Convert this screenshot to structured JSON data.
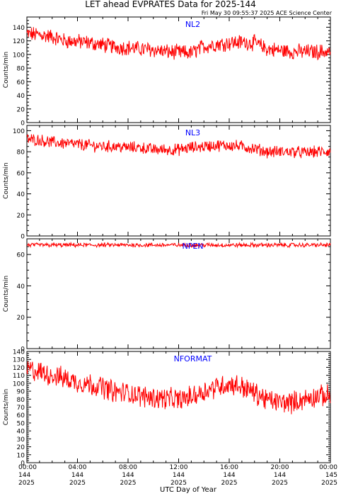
{
  "title": "LET ahead EVPRATES Data for 2025-144",
  "timestamp": "Fri May 30 09:55:37 2025 ACE Science Center",
  "xlabel": "UTC Day of Year",
  "colors": {
    "series": "#ff0000",
    "panel_label": "#0000ff",
    "axis": "#000000"
  },
  "chart_data": [
    {
      "type": "line",
      "label": "NL2",
      "ylabel": "Counts/min",
      "ylim": [
        0,
        155
      ],
      "yticks": [
        0,
        20,
        40,
        60,
        80,
        100,
        120,
        140
      ],
      "xlim": [
        0,
        24
      ],
      "series": [
        {
          "values_hourly": [
            130,
            129,
            126,
            120,
            119,
            117,
            114,
            111,
            110,
            108,
            107,
            104,
            103,
            102,
            112,
            115,
            117,
            118,
            117,
            108,
            106,
            104,
            104,
            104
          ]
        }
      ],
      "noise": 10
    },
    {
      "type": "line",
      "label": "NL3",
      "ylabel": "Counts/min",
      "ylim": [
        0,
        105
      ],
      "yticks": [
        0,
        20,
        40,
        60,
        80,
        100
      ],
      "xlim": [
        0,
        24
      ],
      "series": [
        {
          "values_hourly": [
            92,
            91,
            89,
            88,
            87,
            86,
            85,
            85,
            84,
            84,
            82,
            82,
            82,
            84,
            85,
            86,
            86,
            85,
            83,
            80,
            80,
            80,
            79,
            80
          ]
        }
      ],
      "noise": 5
    },
    {
      "type": "line",
      "label": "NPEN",
      "ylabel": "Counts/min",
      "ylim": [
        0,
        70
      ],
      "yticks": [
        0,
        20,
        40,
        60
      ],
      "xlim": [
        0,
        24
      ],
      "series": [
        {
          "values_hourly": [
            66,
            66,
            66,
            66,
            66,
            66,
            66,
            66,
            66,
            66,
            66,
            66,
            66,
            66,
            66,
            66,
            66,
            66,
            66,
            66,
            66,
            66,
            66,
            66
          ]
        }
      ],
      "noise": 1.2
    },
    {
      "type": "line",
      "label": "NFORMAT",
      "ylabel": "Counts/min",
      "ylim": [
        0,
        140
      ],
      "yticks": [
        0,
        10,
        20,
        30,
        40,
        50,
        60,
        70,
        80,
        90,
        100,
        110,
        120,
        130,
        140
      ],
      "xlim": [
        0,
        24
      ],
      "series": [
        {
          "values_hourly": [
            118,
            114,
            110,
            106,
            101,
            99,
            95,
            89,
            88,
            84,
            82,
            81,
            79,
            83,
            90,
            96,
            99,
            96,
            88,
            79,
            76,
            76,
            80,
            84
          ]
        }
      ],
      "noise": 12
    }
  ],
  "xticks": [
    {
      "hour": 0,
      "lines": [
        "00:00",
        "144",
        "2025"
      ]
    },
    {
      "hour": 4,
      "lines": [
        "04:00",
        "144",
        "2025"
      ]
    },
    {
      "hour": 8,
      "lines": [
        "08:00",
        "144",
        "2025"
      ]
    },
    {
      "hour": 12,
      "lines": [
        "12:00",
        "144",
        "2025"
      ]
    },
    {
      "hour": 16,
      "lines": [
        "16:00",
        "144",
        "2025"
      ]
    },
    {
      "hour": 20,
      "lines": [
        "20:00",
        "144",
        "2025"
      ]
    },
    {
      "hour": 24,
      "lines": [
        "00:00",
        "145",
        "2025"
      ]
    }
  ]
}
